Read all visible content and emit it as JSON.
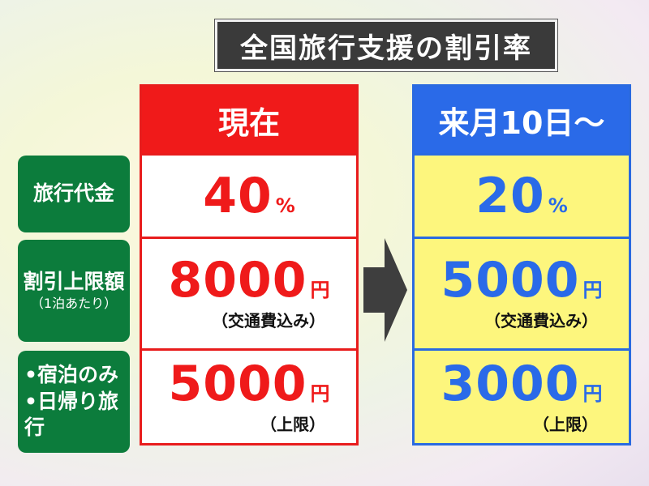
{
  "title": "全国旅行支援の割引率",
  "row_labels": [
    {
      "main": "旅行代金"
    },
    {
      "main": "割引上限額",
      "sub": "（1泊あたり）"
    },
    {
      "line1": "•宿泊のみ",
      "line2": "•日帰り旅行"
    }
  ],
  "current": {
    "header": "現在",
    "rate": "40",
    "rate_unit": "%",
    "cap": "8000",
    "cap_unit": "円",
    "cap_note": "（交通費込み）",
    "daytrip": "5000",
    "daytrip_unit": "円",
    "daytrip_note": "（上限）"
  },
  "next": {
    "header": "来月10日～",
    "rate": "20",
    "rate_unit": "%",
    "cap": "5000",
    "cap_unit": "円",
    "cap_note": "（交通費込み）",
    "daytrip": "3000",
    "daytrip_unit": "円",
    "daytrip_note": "（上限）"
  },
  "colors": {
    "current": "#f01a1a",
    "next": "#2a6ae8",
    "label_bg": "#0c7c3c",
    "next_cell_bg": "#fdf67d"
  },
  "arrow_icon": "right-arrow-icon"
}
